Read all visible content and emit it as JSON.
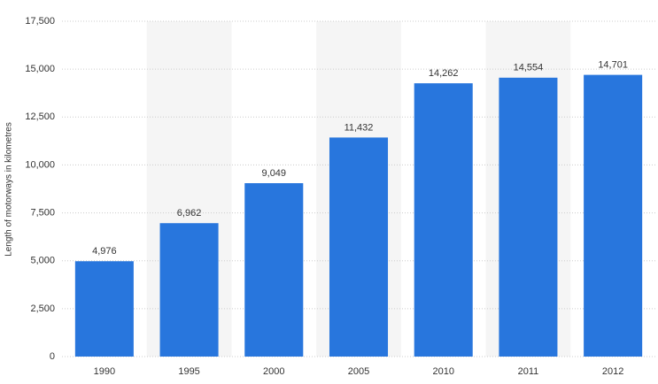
{
  "chart_data": {
    "type": "bar",
    "y_axis_label": "Length of motorways in kilometres",
    "categories": [
      "1990",
      "1995",
      "2000",
      "2005",
      "2010",
      "2011",
      "2012"
    ],
    "values": [
      4976,
      6962,
      9049,
      11432,
      14262,
      14554,
      14701
    ],
    "value_labels": [
      "4,976",
      "6,962",
      "9,049",
      "11,432",
      "14,262",
      "14,554",
      "14,701"
    ],
    "color": "#2876dd",
    "ylim": [
      0,
      17500
    ],
    "yticks": [
      0,
      {
        "value": 2500,
        "label": "2,500"
      },
      {
        "value": 5000,
        "label": "5,000"
      },
      {
        "value": 7500,
        "label": "7,500"
      },
      {
        "value": 10000,
        "label": "10,000"
      },
      {
        "value": 12500,
        "label": "12,500"
      },
      {
        "value": 15000,
        "label": "15,000"
      },
      {
        "value": 17500,
        "label": "17,500"
      }
    ],
    "grid": true
  }
}
